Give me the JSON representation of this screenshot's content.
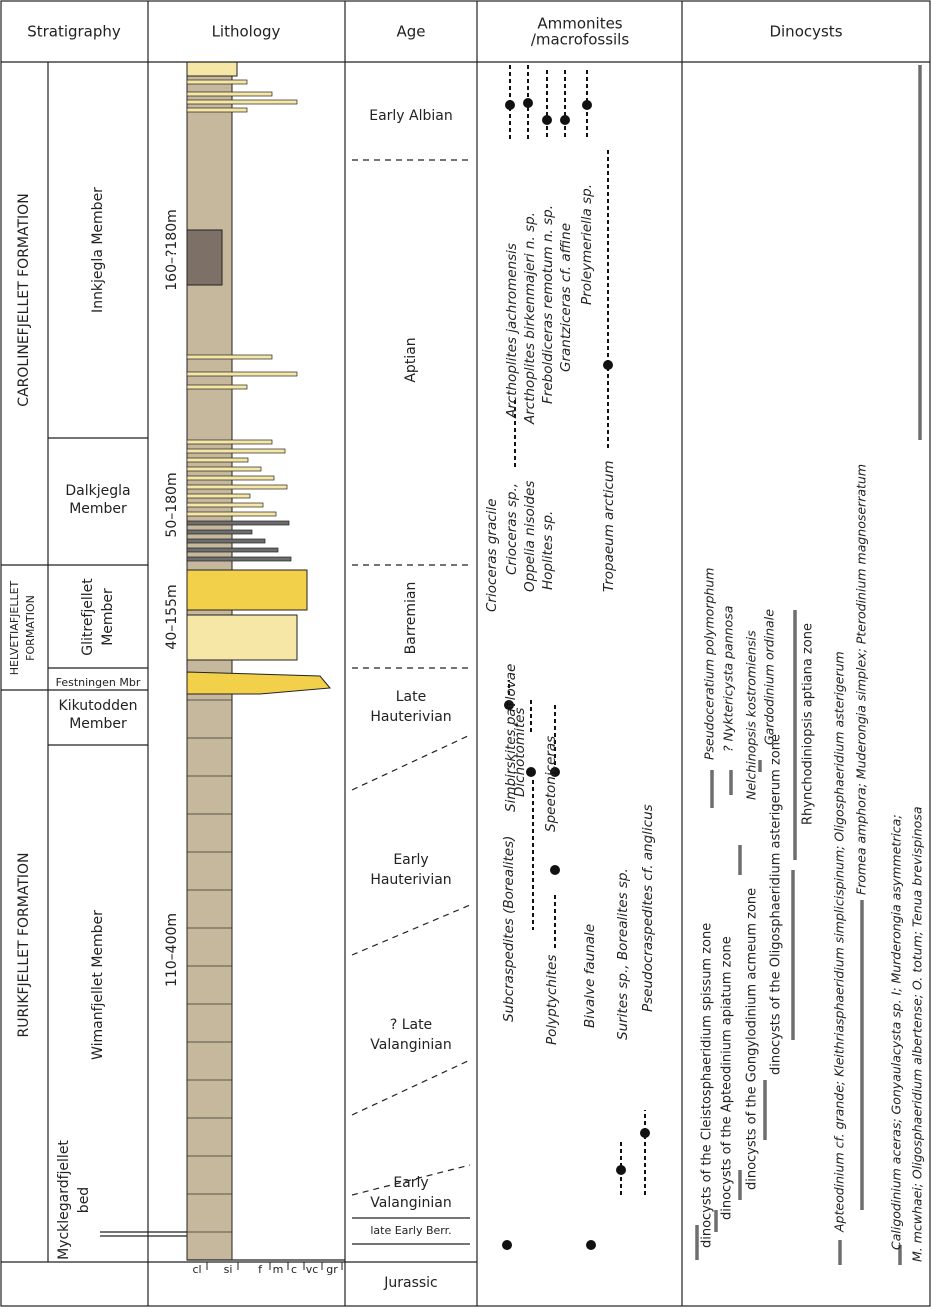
{
  "header": {
    "stratigraphy": "Stratigraphy",
    "lithology": "Lithology",
    "age": "Age",
    "fossils": [
      "Ammonites",
      "/macrofossils"
    ],
    "dinocysts": "Dinocysts"
  },
  "formations": [
    {
      "lines": [
        "CAROLINEFJELLET  FORMATION"
      ]
    },
    {
      "lines": [
        "HELVETIAFJELLET",
        "FORMATION"
      ]
    },
    {
      "lines": [
        "RURIKFJELLET  FORMATION"
      ]
    }
  ],
  "members": [
    {
      "lines": [
        "Innkjegla Member"
      ]
    },
    {
      "lines": [
        "Dalkjegla",
        "Member"
      ]
    },
    {
      "lines": [
        "Glitrefjellet",
        "Member"
      ]
    },
    {
      "lines": [
        "Festningen Mbr"
      ]
    },
    {
      "lines": [
        "Kikutodden",
        "Member"
      ]
    },
    {
      "lines": [
        "Wimanfjellet Member"
      ]
    },
    {
      "lines": [
        "Mycklegardfjellet",
        "bed"
      ]
    }
  ],
  "thicknesses": [
    "160–?180m",
    "50–180m",
    "40–155m",
    "110–400m"
  ],
  "ages": [
    {
      "lines": [
        "Early Albian"
      ]
    },
    {
      "lines": [
        "Aptian"
      ]
    },
    {
      "lines": [
        "Barremian"
      ]
    },
    {
      "lines": [
        "Late",
        "Hauterivian"
      ]
    },
    {
      "lines": [
        "Early",
        "Hauterivian"
      ]
    },
    {
      "lines": [
        "? Late",
        "Valanginian"
      ]
    },
    {
      "lines": [
        "Early",
        "Valanginian"
      ]
    },
    {
      "lines": [
        "late Early Berr."
      ]
    },
    {
      "lines": [
        "Jurassic"
      ]
    }
  ],
  "grain_sizes": [
    "cl",
    "si",
    "f",
    "m",
    "c",
    "vc",
    "gr"
  ],
  "ammonites": [
    {
      "name": "Arcthoplites jachromensis",
      "color": "#2e3d8f"
    },
    {
      "name": "Arcthoplites birkenmajeri n. sp.",
      "color": "#2e3d8f"
    },
    {
      "name": "Freboldiceras remotum n. sp.",
      "color": "#2e3d8f"
    },
    {
      "name": "Grantziceras cf. affine",
      "color": "#2e3d8f"
    },
    {
      "name": "Proleymeriella sp.",
      "color": "#2e3d8f"
    },
    {
      "name": "Tropaeum arcticum",
      "color": "#2e3d8f"
    },
    {
      "name": "Crioceras gracile",
      "color": "#e8641e"
    },
    {
      "name": "Crioceras sp.,",
      "color": "#e8641e"
    },
    {
      "name": "Oppelia nisoides",
      "color": "#e8641e"
    },
    {
      "name": "Hoplites sp.",
      "color": "#e8641e"
    },
    {
      "name": "Simbirskites pavlovae",
      "color": "#111111"
    },
    {
      "name": "Dichotomites",
      "color": "#e0202a"
    },
    {
      "name": "Speetoniceras",
      "color": "#e0202a"
    },
    {
      "name": "Subcraspedites (Borealites)",
      "color": "#111111"
    },
    {
      "name": "Polyptychites",
      "color": "#e0202a"
    },
    {
      "name": "Bivalve faunale",
      "color": "#e0202a"
    },
    {
      "name": "Surites sp., Borealites sp.",
      "color": "#8a2a9a"
    },
    {
      "name": "Pseudocraspedites cf. anglicus",
      "color": "#8a2a9a"
    }
  ],
  "dinocysts": [
    {
      "name": "dinocysts of the Cleistosphaeridium spissum zone",
      "color": "#111111"
    },
    {
      "name": "dinocysts of the  Apteodinium apiatum zone",
      "color": "#111111"
    },
    {
      "name": "dinocysts of the Gongylodinium acmeum zone",
      "color": "#111111"
    },
    {
      "name": "dinocysts of the Oligosphaeridium asterigerum zone",
      "color": "#111111"
    },
    {
      "name": "Rhynchodiniopsis aptiana zone",
      "color": "#111111"
    },
    {
      "name": "Pseudoceratium polymorphum",
      "color": "#1f9a3a"
    },
    {
      "name": "? Nyktericysta pannosa",
      "color": "#1f9a3a"
    },
    {
      "name": "Nelchinopsis kostromiensis",
      "color": "#1f9a3a"
    },
    {
      "name": "Gardodinium ordinale",
      "color": "#1f9a3a"
    },
    {
      "name": "Apteodinium cf. grande; Kleithriasphaeridium simplicispinum; Oligosphaeridium asterigerum",
      "color": "#1aa3d8"
    },
    {
      "name": "Fromea amphora; Muderongia simplex; Pterodinium magnoserratum",
      "color": "#1aa3d8"
    },
    {
      "name": "Caligodinium aceras; Gonyaulacysta sp. I; Murderongia asymmetrica;",
      "color": "#1aa3d8"
    },
    {
      "name": "M. mcwhaei; Oligosphaeridium albertense; O. totum; Tenua brevispinosa",
      "color": "#1aa3d8"
    }
  ]
}
